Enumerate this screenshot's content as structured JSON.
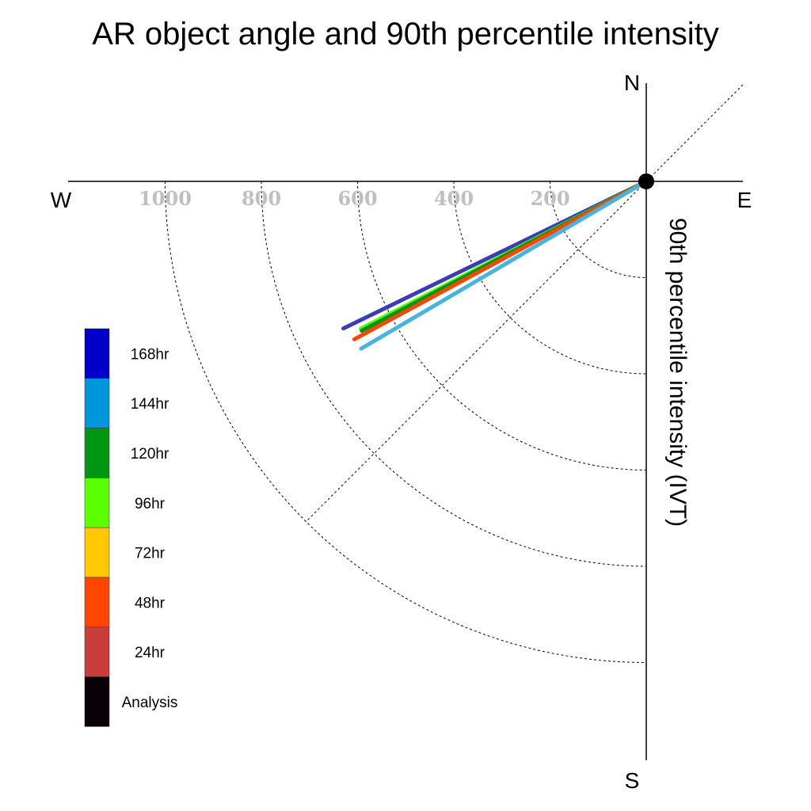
{
  "chart_data": {
    "type": "line",
    "title": "AR object angle and 90th percentile intensity",
    "ylabel": "90th percentile intensity (IVT)",
    "directions": {
      "north": "N",
      "south": "S",
      "east": "E",
      "west": "W"
    },
    "radial_ticks": [
      "200",
      "400",
      "600",
      "800",
      "1000"
    ],
    "radial_tick_values": [
      200,
      400,
      600,
      800,
      1000
    ],
    "grid": true,
    "legend_placement": "bottom-left",
    "legend": [
      {
        "name": "168hr",
        "color": "#0000c8"
      },
      {
        "name": "144hr",
        "color": "#0096dc"
      },
      {
        "name": "120hr",
        "color": "#009614"
      },
      {
        "name": "96hr",
        "color": "#5aff00"
      },
      {
        "name": "72hr",
        "color": "#ffc800"
      },
      {
        "name": "48hr",
        "color": "#ff4600"
      },
      {
        "name": "24hr",
        "color": "#c83c3c"
      },
      {
        "name": "Analysis",
        "color": "#0a0008"
      }
    ],
    "series": [
      {
        "lead": "168hr",
        "color": "#3c3cb4",
        "intensity": 700,
        "angle_below_west_deg": 25.9
      },
      {
        "lead": "96hr",
        "color": "#5aff00",
        "intensity": 668,
        "angle_below_west_deg": 27.3
      },
      {
        "lead": "120hr",
        "color": "#009614",
        "intensity": 668,
        "angle_below_west_deg": 27.7
      },
      {
        "lead": "48hr",
        "color": "#ff4600",
        "intensity": 690,
        "angle_below_west_deg": 28.4
      },
      {
        "lead": "144hr",
        "color": "#46b4dc",
        "intensity": 687,
        "angle_below_west_deg": 30.4
      }
    ]
  }
}
